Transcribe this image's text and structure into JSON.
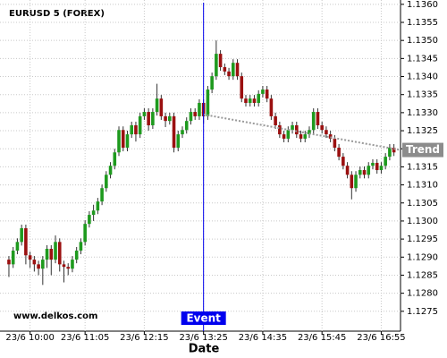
{
  "chart_data": {
    "type": "candlestick",
    "title": "EURUSD 5 (FOREX)",
    "watermark": "www.delkos.com",
    "x_label": "Date",
    "categories": [
      null,
      null,
      null,
      null,
      null,
      "23/6 10:00",
      null,
      null,
      null,
      null,
      null,
      null,
      null,
      null,
      null,
      null,
      null,
      null,
      "23/6 11:05",
      null,
      null,
      null,
      null,
      null,
      null,
      null,
      null,
      null,
      null,
      null,
      null,
      null,
      "23/6 12:15",
      null,
      null,
      null,
      null,
      null,
      null,
      null,
      null,
      null,
      null,
      null,
      null,
      null,
      "23/6 13:25",
      null,
      null,
      null,
      null,
      null,
      null,
      null,
      null,
      null,
      null,
      null,
      null,
      null,
      "23/6 14:35",
      null,
      null,
      null,
      null,
      null,
      null,
      null,
      null,
      null,
      null,
      null,
      null,
      null,
      "23/6 15:45",
      null,
      null,
      null,
      null,
      null,
      null,
      null,
      null,
      null,
      null,
      null,
      null,
      null,
      "23/6 16:55",
      null,
      null,
      null
    ],
    "open": [
      1.12893,
      1.1288,
      1.12918,
      1.12942,
      1.1298,
      1.12905,
      1.12893,
      1.1288,
      1.12868,
      1.12893,
      1.12923,
      1.12893,
      1.12942,
      1.1288,
      1.12873,
      1.12868,
      1.12893,
      1.12918,
      1.12942,
      1.12992,
      1.13017,
      1.13029,
      1.13054,
      1.13091,
      1.13128,
      1.13153,
      1.1319,
      1.13252,
      1.13203,
      1.1324,
      1.13265,
      1.1324,
      1.1329,
      1.13302,
      1.13265,
      1.13302,
      1.13339,
      1.1329,
      1.13277,
      1.1329,
      1.13203,
      1.1324,
      1.13252,
      1.13277,
      1.13302,
      1.1329,
      1.13327,
      1.1329,
      1.13364,
      1.13401,
      1.13463,
      1.13426,
      1.13414,
      1.13401,
      1.13438,
      1.13401,
      1.13339,
      1.13327,
      1.13339,
      1.13327,
      1.13352,
      1.13364,
      1.13339,
      1.1329,
      1.13265,
      1.1324,
      1.13228,
      1.13252,
      1.13265,
      1.1324,
      1.13228,
      1.1324,
      1.13252,
      1.13302,
      1.13265,
      1.13252,
      1.1324,
      1.13228,
      1.13203,
      1.13178,
      1.13153,
      1.13128,
      1.13091,
      1.13128,
      1.13141,
      1.13128,
      1.13153,
      1.13161,
      1.13141,
      1.13153,
      1.13178,
      1.13203
    ],
    "high": [
      1.12903,
      1.12928,
      1.12952,
      1.1299,
      1.1299,
      1.12915,
      1.12903,
      1.1289,
      1.12903,
      1.12933,
      1.12933,
      1.1296,
      1.12952,
      1.1289,
      1.12883,
      1.12903,
      1.12928,
      1.12952,
      1.13002,
      1.13027,
      1.13045,
      1.13064,
      1.13101,
      1.13138,
      1.13163,
      1.132,
      1.13262,
      1.13262,
      1.1325,
      1.13275,
      1.13275,
      1.133,
      1.13312,
      1.13312,
      1.13312,
      1.1338,
      1.13349,
      1.133,
      1.133,
      1.133,
      1.1325,
      1.13262,
      1.13287,
      1.13312,
      1.13312,
      1.13337,
      1.13337,
      1.13374,
      1.13411,
      1.135,
      1.13473,
      1.13436,
      1.13424,
      1.13448,
      1.13448,
      1.13411,
      1.13349,
      1.13349,
      1.13349,
      1.13362,
      1.13374,
      1.13374,
      1.13349,
      1.133,
      1.13275,
      1.1325,
      1.13262,
      1.13275,
      1.13275,
      1.1325,
      1.1325,
      1.13262,
      1.13312,
      1.13312,
      1.13275,
      1.13262,
      1.1325,
      1.13238,
      1.13213,
      1.13188,
      1.13163,
      1.13138,
      1.13138,
      1.13151,
      1.13151,
      1.13163,
      1.13171,
      1.13171,
      1.13163,
      1.13188,
      1.13213,
      1.13213
    ],
    "low": [
      1.12845,
      1.1287,
      1.12908,
      1.12932,
      1.1288,
      1.1287,
      1.1286,
      1.1285,
      1.12823,
      1.1287,
      1.1285,
      1.12883,
      1.1286,
      1.1283,
      1.1285,
      1.12858,
      1.12883,
      1.12908,
      1.12932,
      1.12982,
      1.13,
      1.13019,
      1.13044,
      1.13081,
      1.13118,
      1.13143,
      1.1318,
      1.13193,
      1.13193,
      1.1323,
      1.1322,
      1.1323,
      1.1328,
      1.1325,
      1.13255,
      1.13292,
      1.1328,
      1.1326,
      1.13267,
      1.1319,
      1.13193,
      1.1323,
      1.13242,
      1.13267,
      1.1328,
      1.1328,
      1.1327,
      1.1328,
      1.13354,
      1.13391,
      1.13416,
      1.13404,
      1.13391,
      1.13391,
      1.13391,
      1.13329,
      1.13317,
      1.13317,
      1.13317,
      1.13317,
      1.13342,
      1.13329,
      1.1328,
      1.13255,
      1.1323,
      1.13218,
      1.13218,
      1.13242,
      1.1323,
      1.13218,
      1.13218,
      1.1323,
      1.13242,
      1.13255,
      1.13242,
      1.1323,
      1.13218,
      1.13193,
      1.13168,
      1.13143,
      1.13118,
      1.1306,
      1.13081,
      1.13118,
      1.13118,
      1.13118,
      1.13143,
      1.13131,
      1.13131,
      1.13143,
      1.13168,
      1.1318
    ],
    "close": [
      1.1288,
      1.12918,
      1.12942,
      1.1298,
      1.12905,
      1.12893,
      1.1288,
      1.12868,
      1.12893,
      1.12923,
      1.12893,
      1.12942,
      1.1288,
      1.12873,
      1.12868,
      1.12893,
      1.12918,
      1.12942,
      1.12992,
      1.13017,
      1.13029,
      1.13054,
      1.13091,
      1.13128,
      1.13153,
      1.1319,
      1.13252,
      1.13203,
      1.1324,
      1.13265,
      1.1324,
      1.1329,
      1.13302,
      1.13265,
      1.13302,
      1.13339,
      1.1329,
      1.13277,
      1.1329,
      1.13203,
      1.1324,
      1.13252,
      1.13277,
      1.13302,
      1.1329,
      1.13327,
      1.1329,
      1.13364,
      1.13401,
      1.13463,
      1.13426,
      1.13414,
      1.13401,
      1.13438,
      1.13401,
      1.13339,
      1.13327,
      1.13339,
      1.13327,
      1.13352,
      1.13364,
      1.13339,
      1.1329,
      1.13265,
      1.1324,
      1.13228,
      1.13252,
      1.13265,
      1.1324,
      1.13228,
      1.1324,
      1.13252,
      1.13302,
      1.13265,
      1.13252,
      1.1324,
      1.13228,
      1.13203,
      1.13178,
      1.13153,
      1.13128,
      1.13091,
      1.13128,
      1.13141,
      1.13128,
      1.13153,
      1.13161,
      1.13141,
      1.13153,
      1.13178,
      1.13203,
      1.1319
    ],
    "up_color": "#1e9a1e",
    "down_color": "#9b1010",
    "event": {
      "label": "Event",
      "category": 46,
      "color": "#0000ee"
    },
    "trend": {
      "label": "Trend",
      "from": {
        "category": 46,
        "value": 1.13295
      },
      "to": {
        "category": 91,
        "value": 1.132
      }
    },
    "ylim": [
      1.12695,
      1.13607
    ],
    "yticks": [
      1.1275,
      {
        "value": 1.128,
        "label": "1.1280"
      },
      1.1285,
      {
        "value": 1.129,
        "label": "1.1290"
      },
      1.1295,
      {
        "value": 1.13,
        "label": "1.1300"
      },
      1.1305,
      {
        "value": 1.131,
        "label": "1.1310"
      },
      1.1315,
      {
        "value": 1.132,
        "label": "1.1320"
      },
      1.1325,
      {
        "value": 1.133,
        "label": "1.1330"
      },
      1.1335,
      {
        "value": 1.134,
        "label": "1.1340"
      },
      1.1345,
      {
        "value": 1.135,
        "label": "1.1350"
      },
      1.1355,
      {
        "value": 1.136,
        "label": "1.1360"
      }
    ],
    "grid": true
  }
}
